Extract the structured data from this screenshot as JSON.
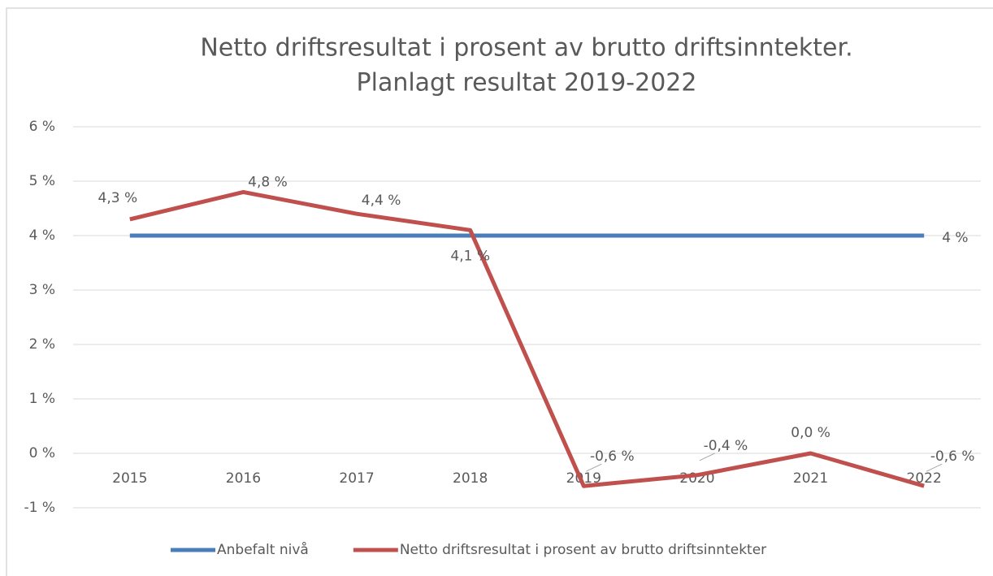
{
  "chart_data": {
    "type": "line",
    "title": [
      "Netto driftsresultat i prosent av brutto driftsinntekter.",
      "Planlagt resultat 2019-2022"
    ],
    "categories": [
      "2015",
      "2016",
      "2017",
      "2018",
      "2019",
      "2020",
      "2021",
      "2022"
    ],
    "series": [
      {
        "name": "Anbefalt nivå",
        "color": "#4a7ebb",
        "values": [
          4,
          4,
          4,
          4,
          4,
          4,
          4,
          4
        ],
        "value_labels": [
          null,
          null,
          null,
          null,
          null,
          null,
          null,
          "4 %"
        ]
      },
      {
        "name": "Netto driftsresultat i prosent av brutto driftsinntekter",
        "color": "#c0504d",
        "values": [
          4.3,
          4.8,
          4.4,
          4.1,
          -0.6,
          -0.4,
          0.0,
          -0.6
        ],
        "value_labels": [
          "4,3 %",
          "4,8 %",
          "4,4 %",
          "4,1 %",
          "-0,6 %",
          "-0,4 %",
          "0,0 %",
          "-0,6 %"
        ]
      }
    ],
    "ylim": [
      -1,
      6
    ],
    "yticks": [
      {
        "value": -1,
        "label": "-1 %"
      },
      {
        "value": 0,
        "label": "0 %"
      },
      {
        "value": 1,
        "label": "1 %"
      },
      {
        "value": 2,
        "label": "2 %"
      },
      {
        "value": 3,
        "label": "3 %"
      },
      {
        "value": 4,
        "label": "4 %"
      },
      {
        "value": 5,
        "label": "5 %"
      },
      {
        "value": 6,
        "label": "6 %"
      }
    ],
    "grid": true,
    "legend": "bottom"
  }
}
